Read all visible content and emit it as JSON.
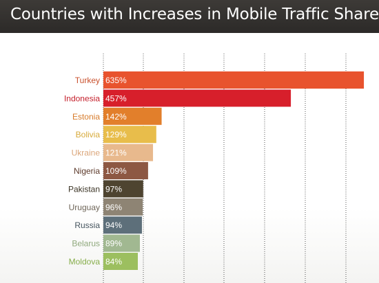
{
  "header": {
    "title": "Countries with Increases in Mobile Traffic Share"
  },
  "chart_data": {
    "type": "bar",
    "orientation": "horizontal",
    "title": "Countries with Increases in Mobile Traffic Share",
    "xlabel": "",
    "ylabel": "",
    "xlim": [
      0,
      650
    ],
    "grid": true,
    "value_suffix": "%",
    "categories": [
      "Turkey",
      "Indonesia",
      "Estonia",
      "Bolivia",
      "Ukraine",
      "Nigeria",
      "Pakistan",
      "Uruguay",
      "Russia",
      "Belarus",
      "Moldova"
    ],
    "values": [
      635,
      457,
      142,
      129,
      121,
      109,
      97,
      96,
      94,
      89,
      84
    ],
    "bar_colors": [
      "#e8532e",
      "#d71f2b",
      "#e27f2b",
      "#e8bd4b",
      "#e8b98d",
      "#8d5843",
      "#4e4430",
      "#8e8474",
      "#5d6f7a",
      "#a1b891",
      "#9cbf5f"
    ],
    "label_colors": [
      "#c9502c",
      "#c41e2a",
      "#d77b2a",
      "#d7aa3a",
      "#dba67a",
      "#5d3a2b",
      "#3a3324",
      "#6e6558",
      "#44535d",
      "#8fa87c",
      "#86ad4a"
    ]
  }
}
